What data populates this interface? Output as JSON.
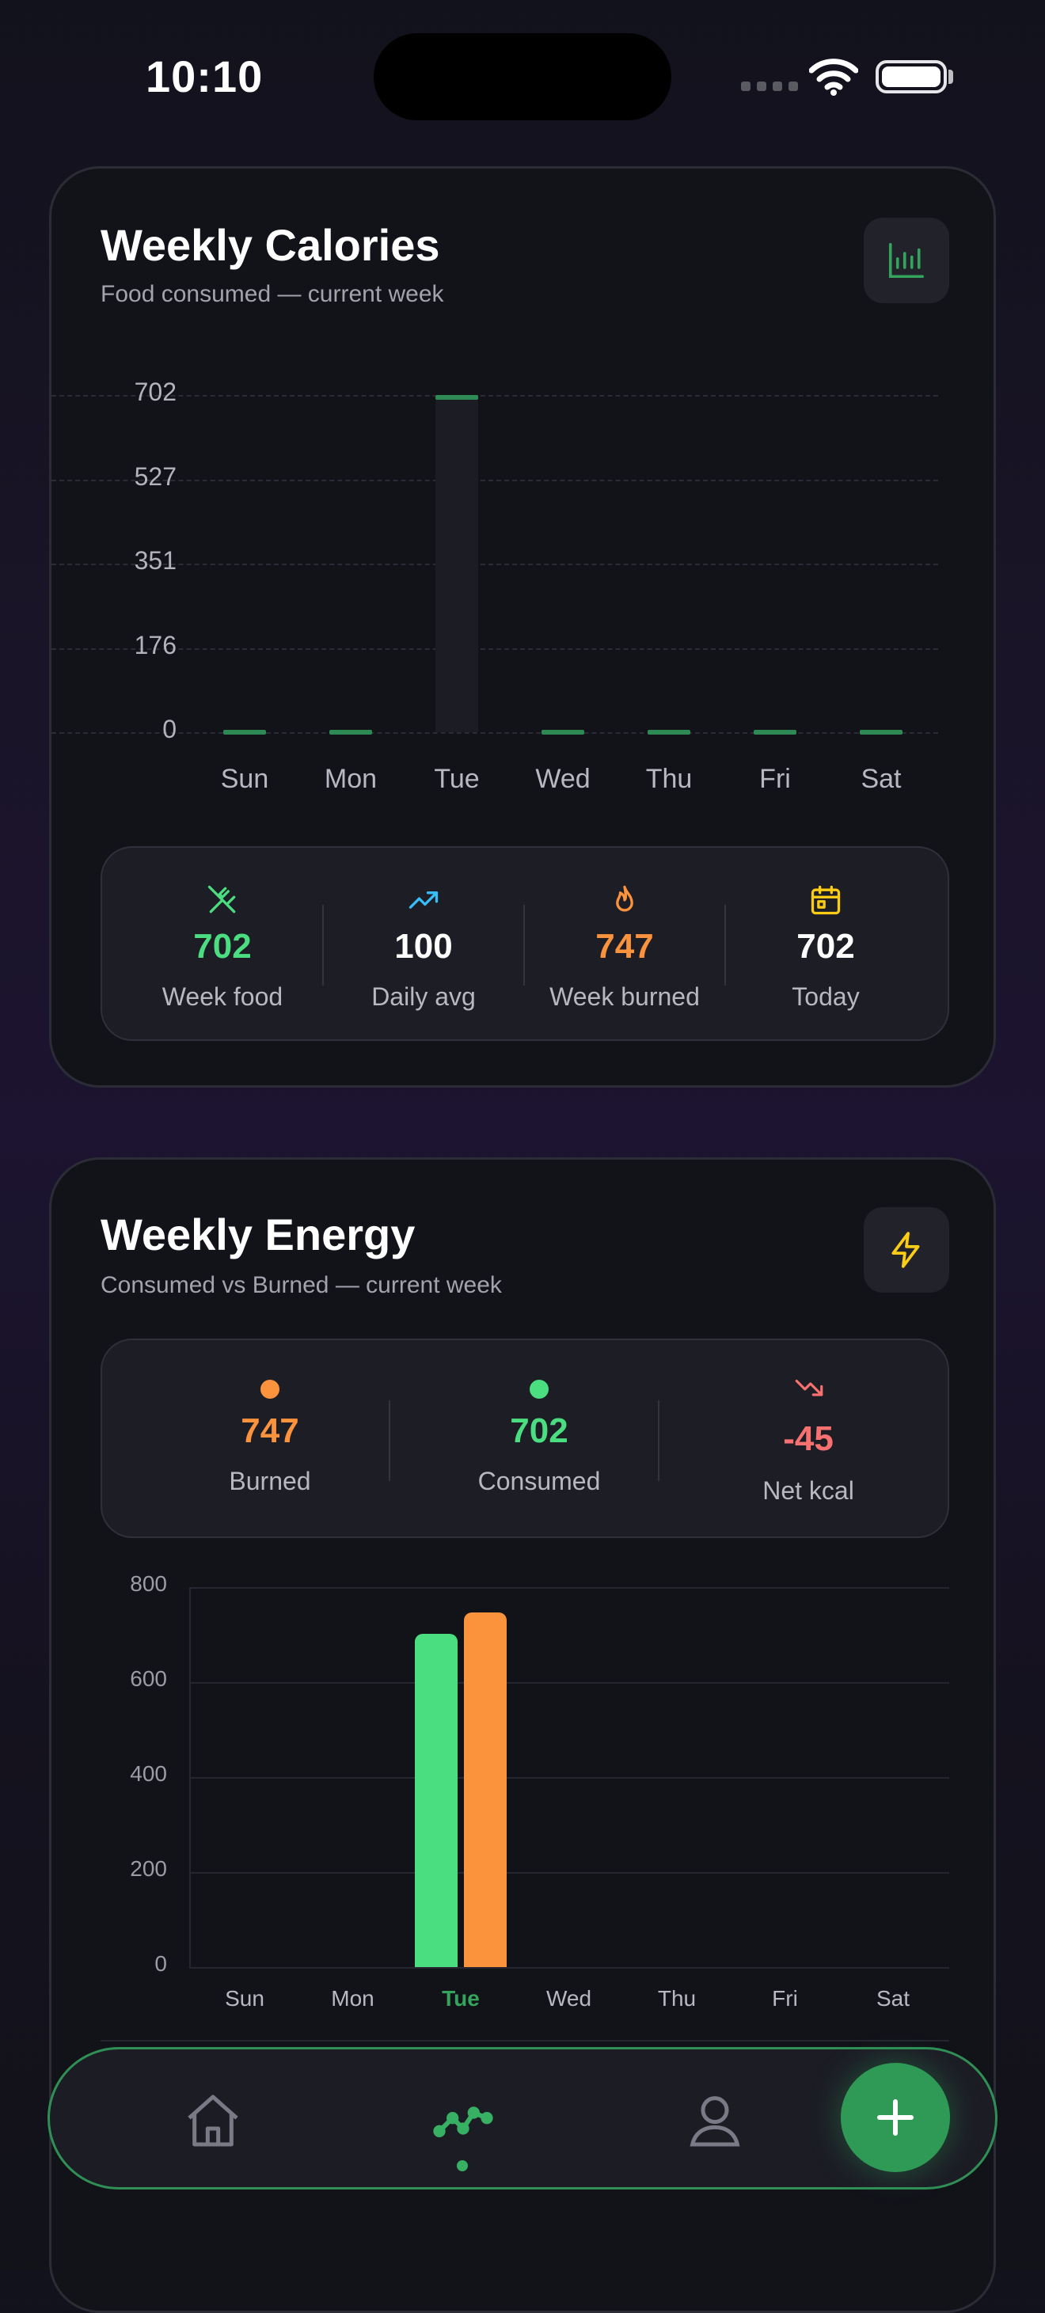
{
  "status_bar": {
    "time": "10:10"
  },
  "weekly_calories": {
    "title": "Weekly Calories",
    "subtitle": "Food consumed — current week",
    "icon": "bar-chart-icon",
    "chart_data": {
      "type": "bar",
      "categories": [
        "Sun",
        "Mon",
        "Tue",
        "Wed",
        "Thu",
        "Fri",
        "Sat"
      ],
      "values": [
        0,
        0,
        702,
        0,
        0,
        0,
        0
      ],
      "y_ticks": [
        "702",
        "527",
        "351",
        "176",
        "0"
      ],
      "ylim": [
        0,
        702
      ],
      "grid": "dashed"
    },
    "stats": [
      {
        "icon": "utensils-icon",
        "value": "702",
        "label": "Week food",
        "color": "#4ade80"
      },
      {
        "icon": "trending-up-icon",
        "value": "100",
        "label": "Daily avg",
        "color": "#ffffff"
      },
      {
        "icon": "flame-icon",
        "value": "747",
        "label": "Week burned",
        "color": "#fb923c"
      },
      {
        "icon": "calendar-icon",
        "value": "702",
        "label": "Today",
        "color": "#ffffff"
      }
    ]
  },
  "weekly_energy": {
    "title": "Weekly Energy",
    "subtitle": "Consumed vs Burned — current week",
    "icon": "lightning-icon",
    "stats": [
      {
        "icon": "orange-dot",
        "value": "747",
        "label": "Burned",
        "color": "#fb923c"
      },
      {
        "icon": "green-dot",
        "value": "702",
        "label": "Consumed",
        "color": "#4ade80"
      },
      {
        "icon": "trending-down-icon",
        "value": "-45",
        "label": "Net kcal",
        "color": "#f87171"
      }
    ],
    "chart_data": {
      "type": "bar",
      "categories": [
        "Sun",
        "Mon",
        "Tue",
        "Wed",
        "Thu",
        "Fri",
        "Sat"
      ],
      "highlight_category": "Tue",
      "series": [
        {
          "name": "Consumed",
          "color": "#4ade80",
          "values": [
            0,
            0,
            702,
            0,
            0,
            0,
            0
          ]
        },
        {
          "name": "Burned",
          "color": "#fb923c",
          "values": [
            0,
            0,
            747,
            0,
            0,
            0,
            0
          ]
        }
      ],
      "y_ticks": [
        "800",
        "600",
        "400",
        "200",
        "0"
      ],
      "ylim": [
        0,
        800
      ],
      "grid": "solid"
    }
  },
  "nav": {
    "items": [
      {
        "name": "home",
        "icon": "home-icon"
      },
      {
        "name": "trends",
        "icon": "trend-line-icon",
        "active": true
      },
      {
        "name": "profile",
        "icon": "user-icon"
      }
    ],
    "fab_icon": "plus-icon"
  }
}
